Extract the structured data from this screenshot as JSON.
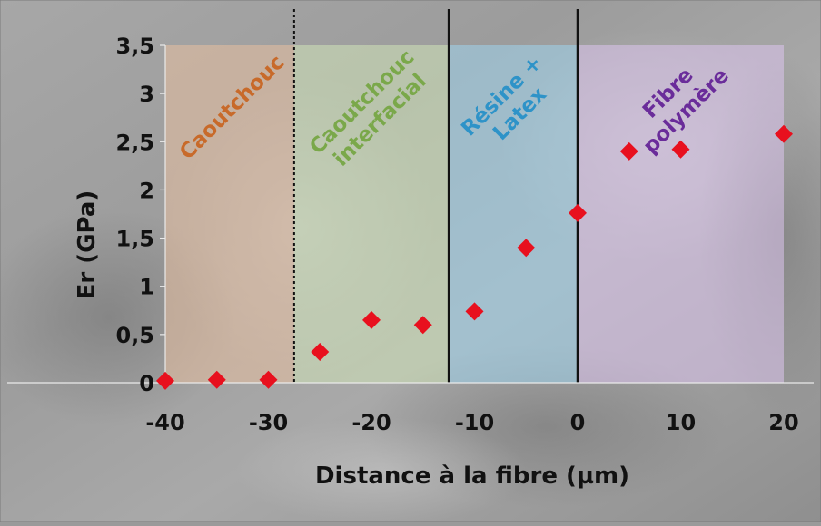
{
  "chart_data": {
    "type": "scatter",
    "title": "",
    "xlabel": "Distance à la fibre (µm)",
    "ylabel": "Er (GPa)",
    "xlim": [
      -40,
      20
    ],
    "ylim": [
      0,
      3.5
    ],
    "xticks": [
      -40,
      -30,
      -20,
      -10,
      0,
      10,
      20
    ],
    "xtick_labels": [
      "-40",
      "-30",
      "-20",
      "-10",
      "0",
      "10",
      "20"
    ],
    "yticks": [
      0,
      0.5,
      1,
      1.5,
      2,
      2.5,
      3,
      3.5
    ],
    "ytick_labels": [
      "0",
      "0,5",
      "1",
      "1,5",
      "2",
      "2,5",
      "3",
      "3,5"
    ],
    "grid": false,
    "legend": "none",
    "background": "micrograph (grey)",
    "marker": {
      "shape": "diamond",
      "color": "#e8101e"
    },
    "points": [
      {
        "x": -40,
        "y": 0.02
      },
      {
        "x": -35,
        "y": 0.03
      },
      {
        "x": -30,
        "y": 0.03
      },
      {
        "x": -25,
        "y": 0.32
      },
      {
        "x": -20,
        "y": 0.65
      },
      {
        "x": -15,
        "y": 0.6
      },
      {
        "x": -10,
        "y": 0.74
      },
      {
        "x": -5,
        "y": 1.4
      },
      {
        "x": 0,
        "y": 1.76
      },
      {
        "x": 5,
        "y": 2.4
      },
      {
        "x": 10,
        "y": 2.42
      },
      {
        "x": 20,
        "y": 2.58
      }
    ],
    "regions": [
      {
        "from": -40,
        "to": -27.5,
        "label_lines": [
          "Caoutchouc"
        ],
        "fill": "#e8bfa0",
        "text_color": "#c86a2a"
      },
      {
        "from": -27.5,
        "to": -12.5,
        "label_lines": [
          "Caoutchouc",
          "interfacial"
        ],
        "fill": "#cfe3b8",
        "text_color": "#7aa84a"
      },
      {
        "from": -12.5,
        "to": 0,
        "label_lines": [
          "Résine +",
          "Latex"
        ],
        "fill": "#9ed3ec",
        "text_color": "#2e93c8"
      },
      {
        "from": 0,
        "to": 20,
        "label_lines": [
          "Fibre",
          "polymère"
        ],
        "fill": "#dcc4ee",
        "text_color": "#6a2c9a"
      }
    ],
    "boundaries": [
      {
        "x": -27.5,
        "style": "dotted"
      },
      {
        "x": -12.5,
        "style": "solid"
      },
      {
        "x": 0,
        "style": "solid"
      }
    ]
  }
}
